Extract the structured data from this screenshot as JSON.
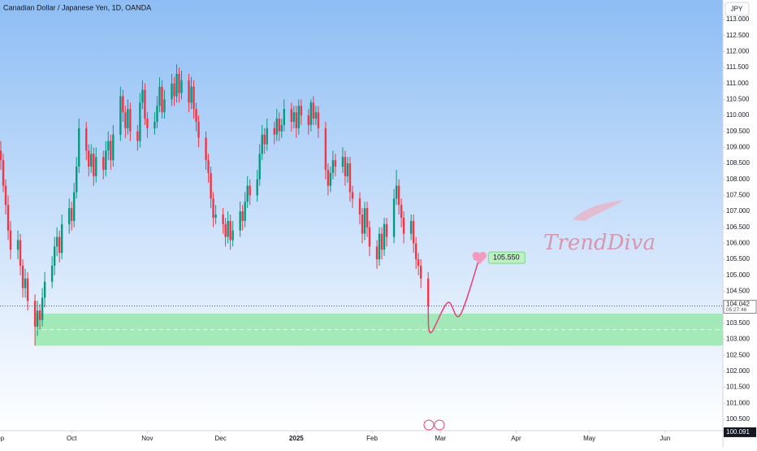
{
  "chart_data": {
    "type": "candlestick",
    "title": "Canadian Dollar / Japanese Yen, 1D, OANDA",
    "currency": "JPY",
    "watermark": "TrendDiva",
    "up_color": "#089981",
    "down_color": "#f23645",
    "ylim": [
      100.14,
      113.61
    ],
    "yticks": [
      {
        "value": 100.5,
        "label": "100.500"
      },
      {
        "value": 101,
        "label": "101.000"
      },
      {
        "value": 101.5,
        "label": "101.500"
      },
      {
        "value": 102,
        "label": "102.000"
      },
      {
        "value": 102.5,
        "label": "102.500"
      },
      {
        "value": 103,
        "label": "103.000"
      },
      {
        "value": 103.5,
        "label": "103.500"
      },
      {
        "value": 104,
        "label": "104.000"
      },
      {
        "value": 104.5,
        "label": "104.500"
      },
      {
        "value": 105,
        "label": "105.000"
      },
      {
        "value": 105.5,
        "label": "105.500"
      },
      {
        "value": 106,
        "label": "106.000"
      },
      {
        "value": 106.5,
        "label": "106.500"
      },
      {
        "value": 107,
        "label": "107.000"
      },
      {
        "value": 107.5,
        "label": "107.500"
      },
      {
        "value": 108,
        "label": "108.000"
      },
      {
        "value": 108.5,
        "label": "108.500"
      },
      {
        "value": 109,
        "label": "109.000"
      },
      {
        "value": 109.5,
        "label": "109.500"
      },
      {
        "value": 110,
        "label": "110.000"
      },
      {
        "value": 110.5,
        "label": "110.500"
      },
      {
        "value": 111,
        "label": "111.000"
      },
      {
        "value": 111.5,
        "label": "111.500"
      },
      {
        "value": 112,
        "label": "112.000"
      },
      {
        "value": 112.5,
        "label": "112.500"
      },
      {
        "value": 113,
        "label": "113.000"
      }
    ],
    "xlim": [
      0,
      296
    ],
    "xticks": [
      {
        "value": 0,
        "label": "Sep"
      },
      {
        "value": 30,
        "label": "Oct"
      },
      {
        "value": 61,
        "label": "Nov"
      },
      {
        "value": 91,
        "label": "Dec"
      },
      {
        "value": 122,
        "label": "2025"
      },
      {
        "value": 153,
        "label": "Feb"
      },
      {
        "value": 181,
        "label": "Mar"
      },
      {
        "value": 212,
        "label": "Apr"
      },
      {
        "value": 242,
        "label": "May"
      },
      {
        "value": 273,
        "label": "Jun"
      }
    ],
    "x": [
      1,
      2,
      3,
      4,
      5,
      8,
      9,
      10,
      11,
      12,
      15,
      16,
      17,
      18,
      19,
      22,
      23,
      24,
      25,
      26,
      29,
      30,
      31,
      32,
      33,
      36,
      37,
      38,
      39,
      40,
      43,
      44,
      45,
      46,
      47,
      50,
      51,
      52,
      53,
      54,
      57,
      58,
      59,
      60,
      61,
      64,
      65,
      66,
      67,
      68,
      71,
      72,
      73,
      74,
      75,
      78,
      79,
      80,
      81,
      82,
      85,
      86,
      87,
      88,
      89,
      92,
      93,
      94,
      95,
      96,
      99,
      100,
      101,
      102,
      103,
      106,
      107,
      108,
      109,
      110,
      113,
      114,
      115,
      116,
      117,
      120,
      121,
      122,
      123,
      124,
      127,
      128,
      129,
      130,
      131,
      134,
      135,
      136,
      137,
      138,
      141,
      142,
      143,
      144,
      145,
      148,
      149,
      150,
      151,
      152,
      155,
      156,
      157,
      158,
      159,
      162,
      163,
      164,
      165,
      166,
      169,
      170,
      171,
      172,
      173,
      176
    ],
    "ohlc": [
      [
        108.9,
        109.2,
        108.3,
        108.6
      ],
      [
        108.6,
        108.8,
        107.6,
        107.8
      ],
      [
        107.8,
        108.0,
        106.9,
        107.2
      ],
      [
        107.2,
        107.5,
        106.1,
        106.4
      ],
      [
        106.4,
        106.7,
        105.5,
        105.8
      ],
      [
        105.8,
        106.4,
        105.5,
        106.1
      ],
      [
        106.1,
        106.3,
        105.0,
        105.3
      ],
      [
        105.3,
        105.5,
        104.3,
        104.6
      ],
      [
        104.6,
        105.2,
        104.3,
        104.9
      ],
      [
        104.9,
        105.1,
        103.9,
        104.2
      ],
      [
        104.2,
        104.4,
        102.8,
        103.4
      ],
      [
        103.4,
        104.2,
        103.1,
        103.9
      ],
      [
        103.9,
        104.1,
        103.3,
        103.6
      ],
      [
        103.6,
        104.6,
        103.4,
        104.3
      ],
      [
        104.3,
        105.1,
        104.0,
        104.8
      ],
      [
        104.8,
        105.6,
        104.6,
        105.3
      ],
      [
        105.3,
        106.2,
        105.0,
        105.9
      ],
      [
        105.9,
        106.5,
        105.6,
        106.2
      ],
      [
        106.2,
        106.4,
        105.4,
        105.7
      ],
      [
        105.7,
        106.9,
        105.5,
        106.6
      ],
      [
        106.6,
        107.4,
        106.3,
        107.1
      ],
      [
        107.1,
        107.3,
        106.4,
        106.7
      ],
      [
        106.7,
        107.9,
        106.5,
        107.6
      ],
      [
        107.6,
        108.7,
        107.4,
        108.4
      ],
      [
        108.4,
        109.9,
        108.2,
        109.6
      ],
      [
        109.6,
        109.8,
        108.6,
        108.9
      ],
      [
        108.9,
        109.1,
        108.1,
        108.4
      ],
      [
        108.4,
        109.1,
        108.2,
        108.8
      ],
      [
        108.8,
        109.0,
        107.8,
        108.1
      ],
      [
        108.1,
        109.0,
        107.9,
        108.7
      ],
      [
        108.7,
        108.9,
        108.0,
        108.3
      ],
      [
        108.3,
        109.2,
        108.1,
        108.9
      ],
      [
        108.9,
        109.5,
        108.6,
        109.2
      ],
      [
        109.2,
        109.4,
        108.3,
        108.6
      ],
      [
        108.6,
        109.7,
        108.4,
        109.4
      ],
      [
        109.4,
        110.9,
        109.2,
        110.6
      ],
      [
        110.6,
        110.8,
        109.8,
        110.1
      ],
      [
        110.1,
        110.3,
        109.3,
        109.6
      ],
      [
        109.6,
        110.5,
        109.4,
        110.2
      ],
      [
        110.2,
        110.4,
        109.2,
        109.5
      ],
      [
        109.5,
        109.7,
        108.9,
        109.2
      ],
      [
        109.2,
        110.7,
        109.0,
        110.4
      ],
      [
        110.4,
        111.1,
        110.2,
        110.8
      ],
      [
        110.8,
        111.0,
        109.7,
        109.9
      ],
      [
        109.9,
        110.1,
        109.3,
        109.6
      ],
      [
        109.6,
        110.1,
        109.4,
        109.8
      ],
      [
        109.8,
        110.6,
        109.6,
        110.3
      ],
      [
        110.3,
        111.2,
        110.1,
        110.9
      ],
      [
        110.9,
        111.1,
        109.9,
        110.1
      ],
      [
        110.1,
        110.8,
        109.9,
        110.5
      ],
      [
        110.5,
        111.3,
        110.3,
        111.0
      ],
      [
        111.0,
        111.2,
        110.3,
        110.6
      ],
      [
        110.6,
        111.6,
        110.4,
        111.3
      ],
      [
        111.3,
        111.5,
        110.4,
        110.7
      ],
      [
        110.7,
        111.4,
        110.5,
        111.1
      ],
      [
        111.1,
        111.3,
        110.1,
        110.4
      ],
      [
        110.4,
        111.2,
        110.2,
        110.9
      ],
      [
        110.9,
        111.1,
        109.9,
        110.2
      ],
      [
        110.2,
        110.4,
        109.5,
        109.8
      ],
      [
        109.8,
        110.0,
        109.0,
        109.3
      ],
      [
        109.3,
        109.5,
        108.3,
        108.6
      ],
      [
        108.6,
        108.8,
        107.9,
        108.2
      ],
      [
        108.2,
        108.4,
        107.1,
        107.4
      ],
      [
        107.4,
        107.6,
        106.5,
        106.8
      ],
      [
        106.8,
        107.2,
        106.6,
        106.9
      ],
      [
        106.9,
        107.1,
        106.3,
        106.6
      ],
      [
        106.6,
        106.8,
        105.9,
        106.2
      ],
      [
        106.2,
        107.0,
        106.0,
        106.7
      ],
      [
        106.7,
        106.9,
        105.8,
        106.1
      ],
      [
        106.1,
        106.7,
        105.9,
        106.4
      ],
      [
        106.4,
        107.3,
        106.2,
        107.0
      ],
      [
        107.0,
        107.2,
        106.4,
        106.7
      ],
      [
        106.7,
        107.6,
        106.5,
        107.3
      ],
      [
        107.3,
        108.1,
        107.1,
        107.8
      ],
      [
        107.8,
        108.0,
        107.2,
        107.5
      ],
      [
        107.5,
        108.3,
        107.3,
        108.0
      ],
      [
        108.0,
        109.1,
        107.8,
        108.8
      ],
      [
        108.8,
        109.7,
        108.6,
        109.4
      ],
      [
        109.4,
        109.6,
        108.8,
        109.1
      ],
      [
        109.1,
        109.9,
        108.9,
        109.6
      ],
      [
        109.6,
        109.8,
        109.1,
        109.4
      ],
      [
        109.4,
        110.2,
        109.2,
        109.9
      ],
      [
        109.9,
        110.1,
        109.2,
        109.5
      ],
      [
        109.5,
        109.9,
        109.3,
        109.7
      ],
      [
        109.7,
        110.5,
        109.5,
        110.2
      ],
      [
        110.2,
        110.4,
        109.5,
        109.8
      ],
      [
        109.8,
        110.3,
        109.6,
        110.1
      ],
      [
        110.1,
        110.3,
        109.3,
        109.6
      ],
      [
        109.6,
        110.5,
        109.4,
        110.3
      ],
      [
        110.3,
        110.5,
        109.7,
        110.0
      ],
      [
        110.0,
        110.2,
        109.4,
        109.7
      ],
      [
        109.7,
        110.5,
        109.5,
        110.4
      ],
      [
        110.4,
        110.6,
        109.7,
        109.9
      ],
      [
        109.9,
        110.3,
        109.7,
        110.1
      ],
      [
        110.1,
        110.3,
        109.3,
        109.6
      ],
      [
        109.6,
        109.8,
        108.0,
        108.3
      ],
      [
        108.3,
        108.5,
        107.5,
        107.8
      ],
      [
        107.8,
        108.4,
        107.6,
        108.2
      ],
      [
        108.2,
        108.9,
        108.0,
        108.6
      ],
      [
        108.6,
        108.8,
        108.1,
        108.4
      ],
      [
        108.4,
        109.0,
        108.2,
        108.7
      ],
      [
        108.7,
        108.9,
        107.8,
        108.1
      ],
      [
        108.1,
        108.7,
        107.9,
        108.5
      ],
      [
        108.5,
        108.7,
        107.3,
        107.6
      ],
      [
        107.6,
        107.8,
        107.1,
        107.4
      ],
      [
        107.4,
        107.6,
        106.6,
        106.9
      ],
      [
        106.9,
        107.1,
        106.0,
        106.3
      ],
      [
        106.3,
        107.3,
        106.1,
        107.1
      ],
      [
        107.1,
        107.3,
        106.2,
        106.5
      ],
      [
        106.5,
        106.7,
        105.6,
        105.9
      ],
      [
        105.9,
        106.1,
        105.2,
        105.5
      ],
      [
        105.5,
        106.5,
        105.3,
        106.3
      ],
      [
        106.3,
        106.5,
        105.5,
        105.8
      ],
      [
        105.8,
        106.8,
        105.6,
        106.6
      ],
      [
        106.6,
        106.8,
        105.9,
        106.2
      ],
      [
        106.2,
        107.7,
        106.0,
        107.4
      ],
      [
        107.4,
        108.3,
        107.2,
        107.8
      ],
      [
        107.8,
        108.0,
        106.9,
        107.2
      ],
      [
        107.2,
        107.4,
        106.5,
        106.8
      ],
      [
        106.8,
        107.0,
        106.0,
        106.3
      ],
      [
        106.3,
        106.9,
        106.1,
        106.7
      ],
      [
        106.7,
        106.9,
        105.7,
        106.0
      ],
      [
        106.0,
        106.2,
        105.2,
        105.5
      ],
      [
        105.5,
        105.7,
        105.0,
        105.3
      ],
      [
        105.3,
        105.5,
        104.6,
        104.9
      ],
      [
        104.9,
        105.1,
        104.0,
        104.042
      ]
    ],
    "zone": {
      "x_start": 15,
      "low": 102.8,
      "high": 103.8,
      "mid": 103.3,
      "color": "#8ee6a0"
    },
    "forecast": {
      "x": [
        176,
        177,
        184,
        189,
        197
      ],
      "y": [
        104.04,
        103.2,
        104.15,
        103.75,
        105.55
      ],
      "color": "#e8407a"
    },
    "target": {
      "value": 105.55,
      "label": "105.550"
    },
    "last_price": {
      "value": 104.042,
      "label": "104.042",
      "countdown": "05:27:46"
    },
    "crosshair": {
      "value": 100.091,
      "label": "100.091"
    }
  }
}
